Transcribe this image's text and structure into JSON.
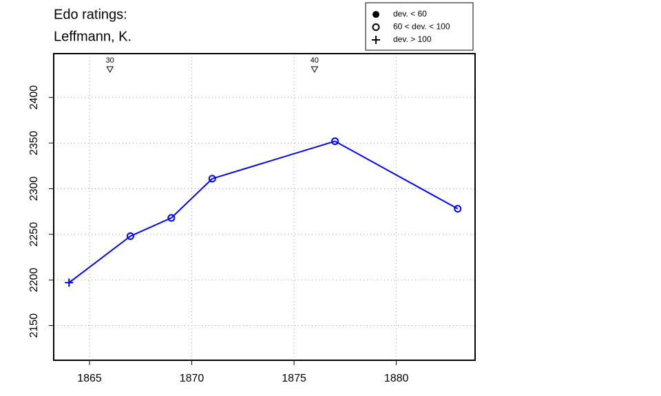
{
  "chart_data": {
    "type": "line",
    "title": "Edo ratings:",
    "subtitle": "Leffmann, K.",
    "x": [
      1864,
      1867,
      1869,
      1871,
      1877,
      1883
    ],
    "series": [
      {
        "color": "#0000ff",
        "values": [
          2197,
          2248,
          2268,
          2311,
          2352,
          2278
        ],
        "markers": [
          "plus",
          "circle",
          "circle",
          "circle",
          "circle",
          "circle"
        ]
      }
    ],
    "xlim": [
      1863.25,
      1883.85
    ],
    "ylim": [
      2112,
      2448
    ],
    "xticks": [
      1865,
      1870,
      1875,
      1880
    ],
    "yticks": [
      2150,
      2200,
      2250,
      2300,
      2350,
      2400
    ],
    "grid": true,
    "legend": {
      "position": "top-right",
      "entries": [
        {
          "label": "dev. < 60",
          "symbol": "dot"
        },
        {
          "label": "60 < dev. < 100",
          "symbol": "circle"
        },
        {
          "label": "dev. > 100",
          "symbol": "plus"
        }
      ]
    },
    "annotations": [
      {
        "x": 1866,
        "label": "30"
      },
      {
        "x": 1876,
        "label": "40"
      }
    ]
  }
}
